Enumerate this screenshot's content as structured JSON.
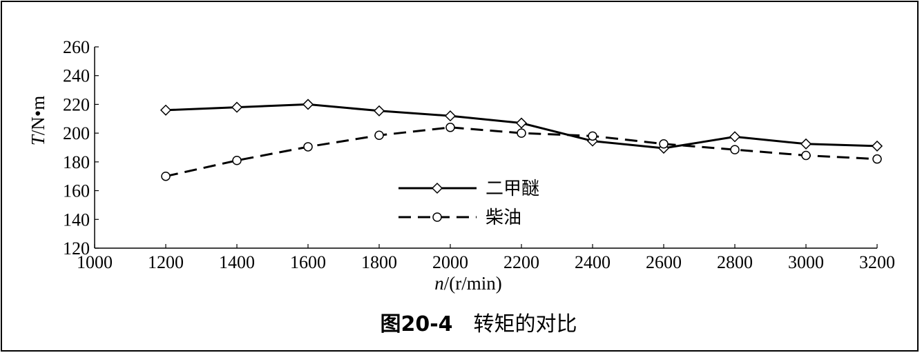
{
  "caption": {
    "number": "图20-4",
    "title": "转矩的对比"
  },
  "chart_data": {
    "type": "line",
    "title": "",
    "xlabel_var": "n",
    "xlabel_unit": "/(r/min)",
    "ylabel_var": "T",
    "ylabel_unit": "/N•m",
    "xlim": [
      1000,
      3200
    ],
    "ylim": [
      120,
      260
    ],
    "x_ticks": [
      1000,
      1200,
      1400,
      1600,
      1800,
      2000,
      2200,
      2400,
      2600,
      2800,
      3000,
      3200
    ],
    "y_ticks": [
      120,
      140,
      160,
      180,
      200,
      220,
      240,
      260
    ],
    "grid": false,
    "legend_position": "center",
    "series": [
      {
        "name": "二甲醚",
        "style": "solid",
        "marker": "diamond",
        "color": "#000000",
        "x": [
          1200,
          1400,
          1600,
          1800,
          2000,
          2200,
          2400,
          2600,
          2800,
          3000,
          3200
        ],
        "y": [
          216,
          218,
          220,
          215.5,
          212,
          207,
          194.5,
          189.5,
          197.5,
          192.5,
          191
        ]
      },
      {
        "name": "柴油",
        "style": "dashed",
        "marker": "circle",
        "color": "#000000",
        "x": [
          1200,
          1400,
          1600,
          1800,
          2000,
          2200,
          2400,
          2600,
          2800,
          3000,
          3200
        ],
        "y": [
          170,
          181,
          190.5,
          198.5,
          204,
          200,
          198,
          192.5,
          188.5,
          184.5,
          182
        ]
      }
    ]
  }
}
